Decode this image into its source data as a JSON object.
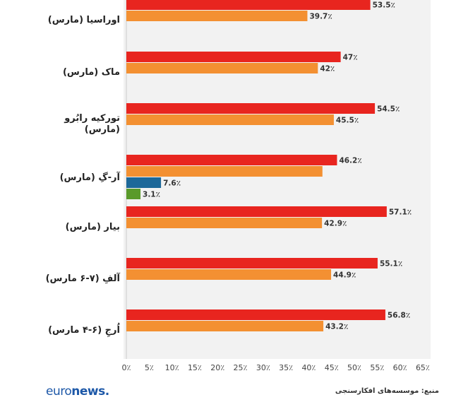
{
  "chart_data": {
    "type": "bar",
    "orientation": "horizontal",
    "xlim": [
      0,
      65
    ],
    "x_ticks": [
      "0٪",
      "5٪",
      "10٪",
      "15٪",
      "20٪",
      "25٪",
      "30٪",
      "35٪",
      "40٪",
      "45٪",
      "50٪",
      "55٪",
      "60٪",
      "65٪"
    ],
    "series_colors": [
      "#e8251f",
      "#f39032",
      "#1d6899",
      "#5a9a2a"
    ],
    "categories": [
      {
        "label": "اوراسیا (مارس)",
        "bars": [
          {
            "value": 53.5,
            "text": "53.5٪",
            "series": 0
          },
          {
            "value": 39.7,
            "text": "39.7٪",
            "series": 1
          }
        ]
      },
      {
        "label": "ماک (مارس)",
        "bars": [
          {
            "value": 47,
            "text": "47٪",
            "series": 0
          },
          {
            "value": 42,
            "text": "42٪",
            "series": 1
          }
        ]
      },
      {
        "label": "تورکیه رابُرو (مارس)",
        "bars": [
          {
            "value": 54.5,
            "text": "54.5٪",
            "series": 0
          },
          {
            "value": 45.5,
            "text": "45.5٪",
            "series": 1
          }
        ]
      },
      {
        "label": "آر-گِ (مارس)",
        "bars": [
          {
            "value": 46.2,
            "text": "46.2٪",
            "series": 0
          },
          {
            "value": 43,
            "text": "",
            "series": 1
          },
          {
            "value": 7.6,
            "text": "7.6٪",
            "series": 2
          },
          {
            "value": 3.1,
            "text": "3.1٪",
            "series": 3
          }
        ]
      },
      {
        "label": "بیار (مارس)",
        "bars": [
          {
            "value": 57.1,
            "text": "57.1٪",
            "series": 0
          },
          {
            "value": 42.9,
            "text": "42.9٪",
            "series": 1
          }
        ]
      },
      {
        "label": "آلفِ (۷-۶ مارس)",
        "bars": [
          {
            "value": 55.1,
            "text": "55.1٪",
            "series": 0
          },
          {
            "value": 44.9,
            "text": "44.9٪",
            "series": 1
          }
        ]
      },
      {
        "label": "اُرجِ (۶-۴ مارس)",
        "bars": [
          {
            "value": 56.8,
            "text": "56.8٪",
            "series": 0
          },
          {
            "value": 43.2,
            "text": "43.2٪",
            "series": 1
          }
        ]
      }
    ]
  },
  "footer": {
    "brand_part1": "euro",
    "brand_part2": "news",
    "brand_dot": ".",
    "source": "منبع: موسسه‌های افکارسنجی"
  }
}
